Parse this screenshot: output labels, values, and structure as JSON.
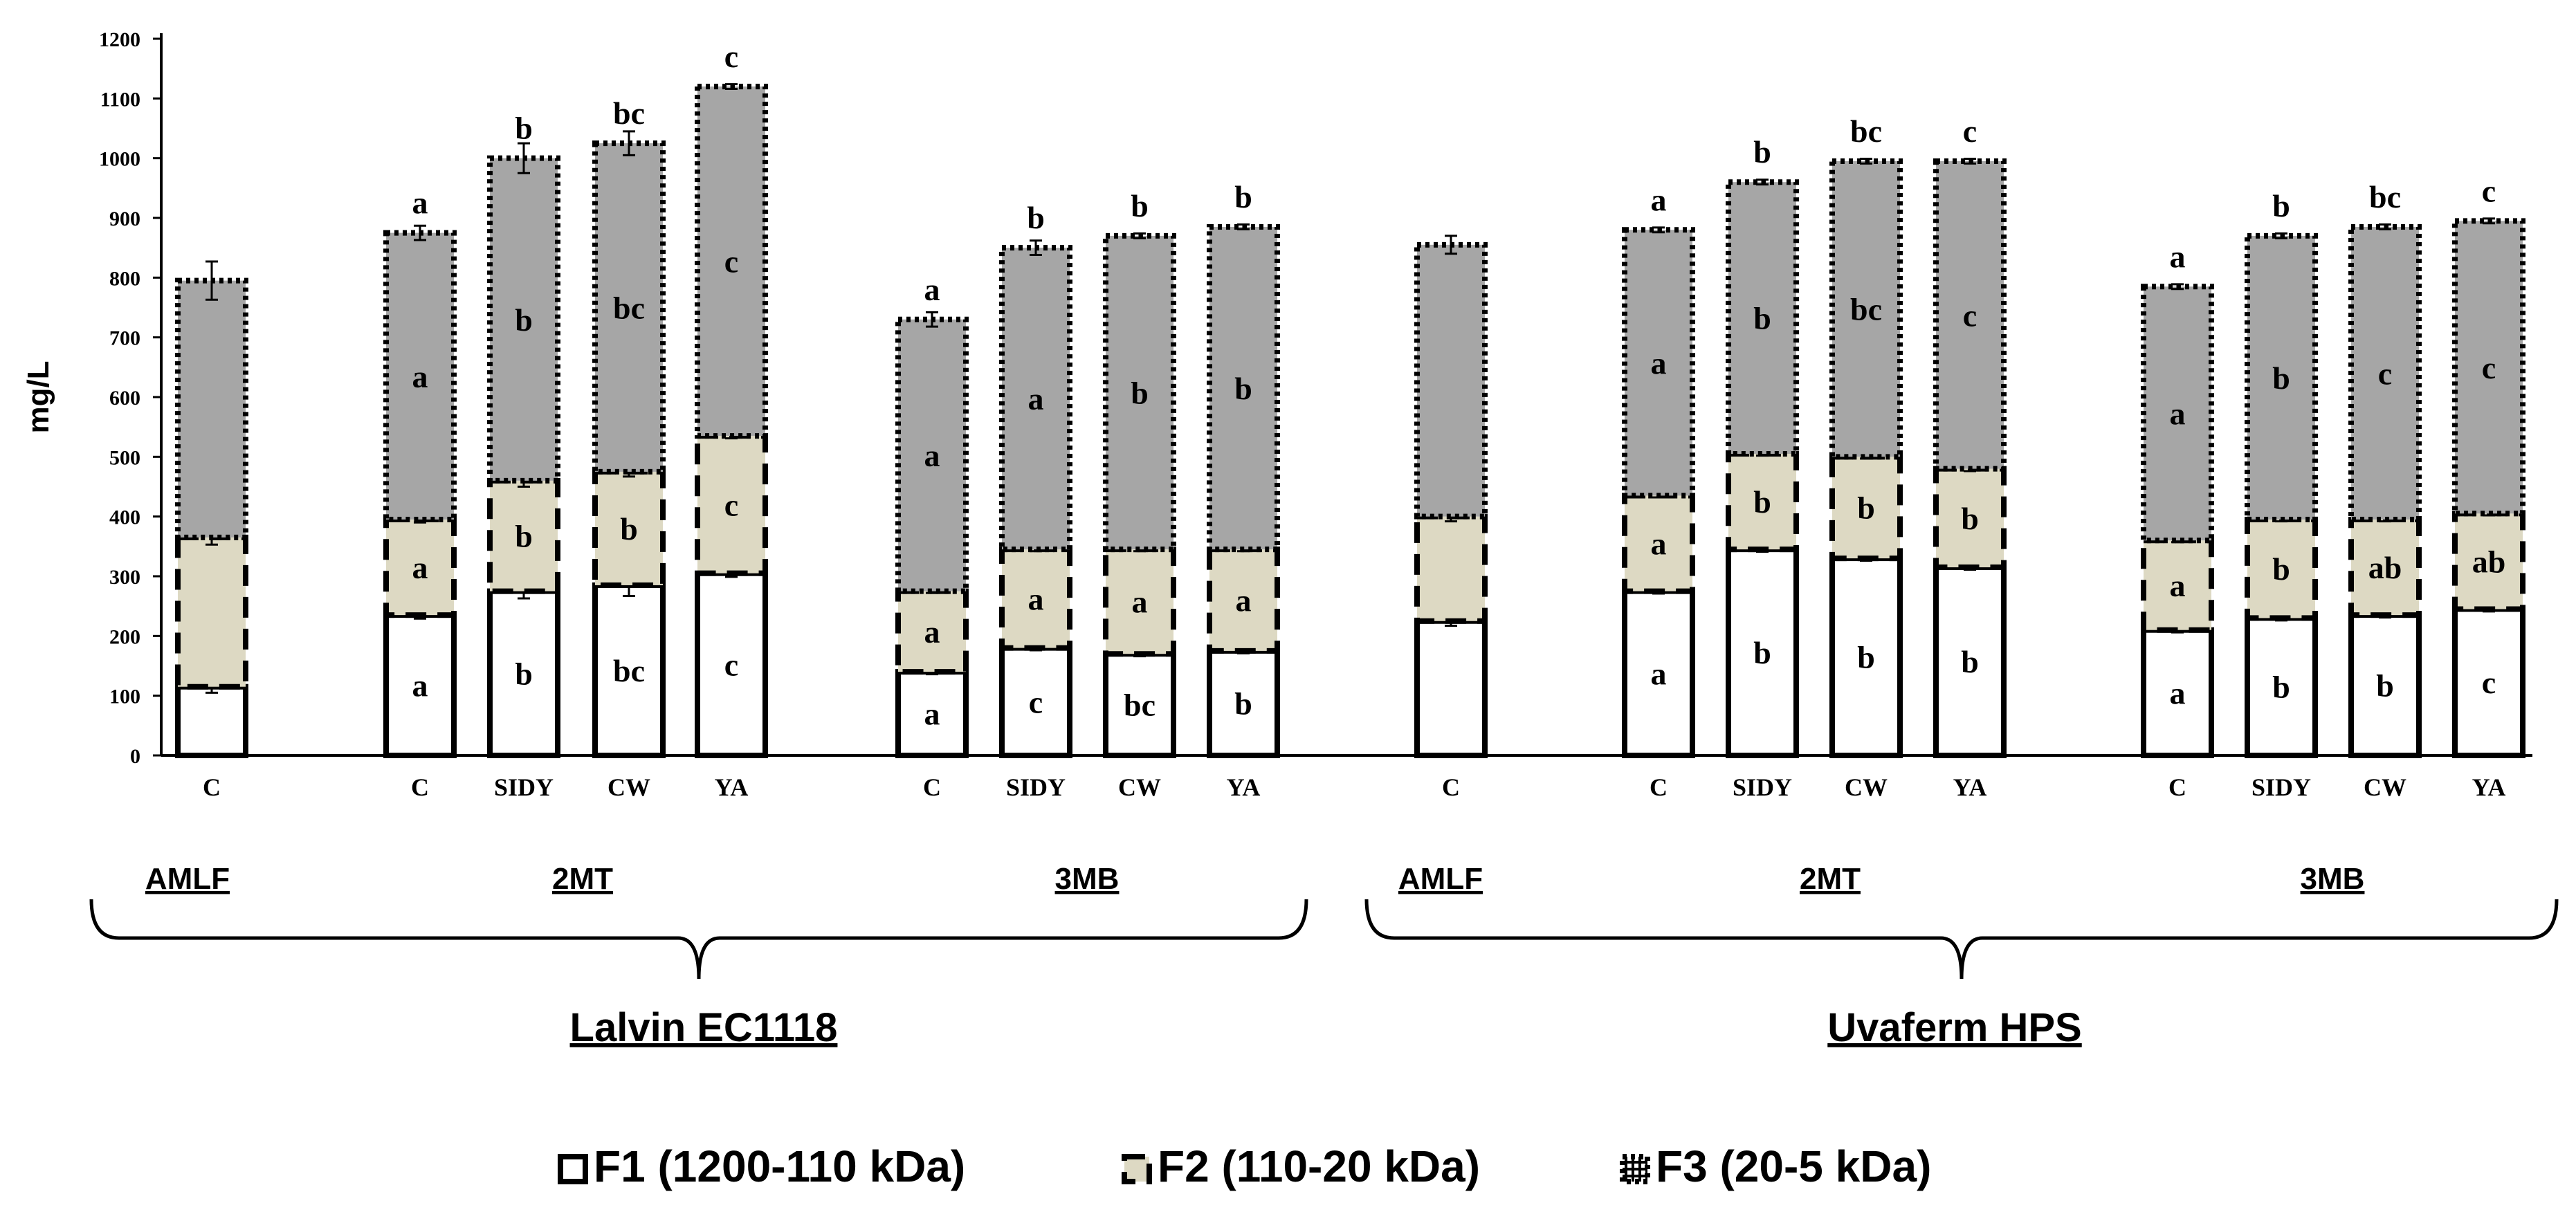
{
  "chart_data": {
    "type": "stacked-bar",
    "title": "",
    "ylabel": "mg/L",
    "ylim": [
      0,
      1200
    ],
    "yticks": [
      0,
      100,
      200,
      300,
      400,
      500,
      600,
      700,
      800,
      900,
      1000,
      1100,
      1200
    ],
    "series": [
      {
        "name": "F1 (1200-110 kDa)",
        "fill": "#ffffff",
        "dash": "solid"
      },
      {
        "name": "F2 (110-20 kDa)",
        "fill": "#ddd9c3",
        "dash": "dashed"
      },
      {
        "name": "F3 (20-5 kDa)",
        "fill": "#a6a6a6",
        "dash": "dotted"
      }
    ],
    "bars": [
      {
        "label": "C",
        "values": [
          115,
          250,
          430
        ],
        "errors": [
          10,
          12,
          32
        ],
        "letters": [
          "",
          "",
          "",
          ""
        ]
      },
      {
        "label": "C",
        "values": [
          235,
          160,
          480
        ],
        "errors": [
          6,
          5,
          12
        ],
        "letters": [
          "a",
          "a",
          "a",
          "a"
        ]
      },
      {
        "label": "SIDY",
        "values": [
          275,
          185,
          540
        ],
        "errors": [
          12,
          10,
          25
        ],
        "letters": [
          "b",
          "b",
          "b",
          "b"
        ]
      },
      {
        "label": "CW",
        "values": [
          285,
          190,
          550
        ],
        "errors": [
          18,
          8,
          20
        ],
        "letters": [
          "bc",
          "b",
          "bc",
          "bc"
        ]
      },
      {
        "label": "YA",
        "values": [
          305,
          230,
          585
        ],
        "errors": [
          6,
          4,
          4
        ],
        "letters": [
          "c",
          "c",
          "c",
          "c"
        ]
      },
      {
        "label": "C",
        "values": [
          140,
          135,
          455
        ],
        "errors": [
          4,
          3,
          12
        ],
        "letters": [
          "a",
          "a",
          "a",
          "a"
        ]
      },
      {
        "label": "SIDY",
        "values": [
          180,
          165,
          505
        ],
        "errors": [
          4,
          3,
          12
        ],
        "letters": [
          "c",
          "a",
          "a",
          "b"
        ]
      },
      {
        "label": "CW",
        "values": [
          170,
          175,
          525
        ],
        "errors": [
          4,
          3,
          4
        ],
        "letters": [
          "bc",
          "a",
          "b",
          "b"
        ]
      },
      {
        "label": "YA",
        "values": [
          175,
          170,
          540
        ],
        "errors": [
          4,
          3,
          4
        ],
        "letters": [
          "b",
          "a",
          "b",
          "b"
        ]
      },
      {
        "label": "C",
        "values": [
          225,
          175,
          455
        ],
        "errors": [
          8,
          8,
          15
        ],
        "letters": [
          "",
          "",
          "",
          ""
        ]
      },
      {
        "label": "C",
        "values": [
          275,
          160,
          445
        ],
        "errors": [
          4,
          3,
          4
        ],
        "letters": [
          "a",
          "a",
          "a",
          "a"
        ]
      },
      {
        "label": "SIDY",
        "values": [
          345,
          160,
          455
        ],
        "errors": [
          4,
          3,
          4
        ],
        "letters": [
          "b",
          "b",
          "b",
          "b"
        ]
      },
      {
        "label": "CW",
        "values": [
          330,
          170,
          495
        ],
        "errors": [
          4,
          3,
          4
        ],
        "letters": [
          "b",
          "b",
          "bc",
          "bc"
        ]
      },
      {
        "label": "YA",
        "values": [
          315,
          165,
          515
        ],
        "errors": [
          4,
          4,
          4
        ],
        "letters": [
          "b",
          "b",
          "c",
          "c"
        ]
      },
      {
        "label": "C",
        "values": [
          210,
          150,
          425
        ],
        "errors": [
          4,
          3,
          4
        ],
        "letters": [
          "a",
          "a",
          "a",
          "a"
        ]
      },
      {
        "label": "SIDY",
        "values": [
          230,
          165,
          475
        ],
        "errors": [
          4,
          3,
          4
        ],
        "letters": [
          "b",
          "b",
          "b",
          "b"
        ]
      },
      {
        "label": "CW",
        "values": [
          235,
          160,
          490
        ],
        "errors": [
          4,
          3,
          4
        ],
        "letters": [
          "b",
          "ab",
          "c",
          "bc"
        ]
      },
      {
        "label": "YA",
        "values": [
          245,
          160,
          490
        ],
        "errors": [
          4,
          3,
          4
        ],
        "letters": [
          "c",
          "ab",
          "c",
          "c"
        ]
      }
    ],
    "groups": [
      {
        "label": "AMLF",
        "from": 0,
        "to": 0
      },
      {
        "label": "2MT",
        "from": 1,
        "to": 4
      },
      {
        "label": "3MB",
        "from": 5,
        "to": 8
      },
      {
        "label": "AMLF",
        "from": 9,
        "to": 9
      },
      {
        "label": "2MT",
        "from": 10,
        "to": 13
      },
      {
        "label": "3MB",
        "from": 14,
        "to": 17
      }
    ],
    "yeasts": [
      {
        "label": "Lalvin EC1118",
        "from": 0,
        "to": 8
      },
      {
        "label": "Uvaferm HPS",
        "from": 9,
        "to": 17
      }
    ]
  }
}
